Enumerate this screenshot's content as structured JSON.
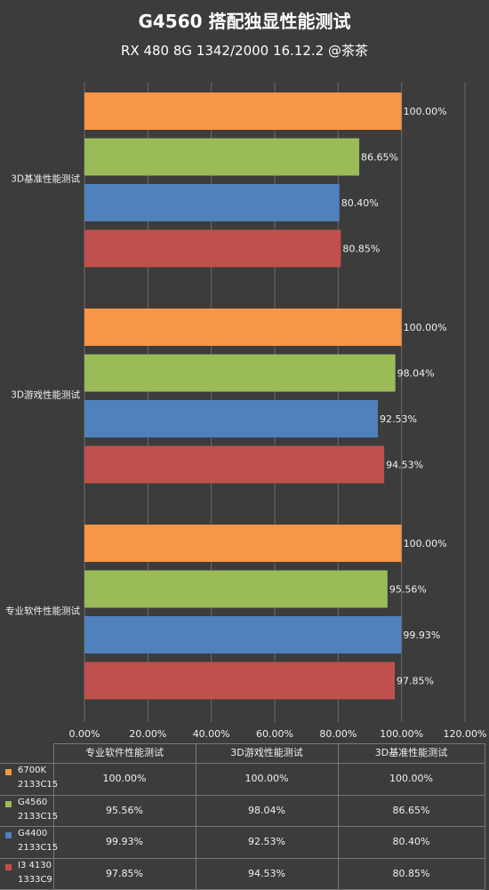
{
  "title": "G4560 搭配独显性能测试",
  "subtitle": "RX 480 8G 1342/2000 16.12.2 @茶茶",
  "chart_data": {
    "type": "bar",
    "orientation": "horizontal",
    "categories": [
      "3D基准性能测试",
      "3D游戏性能测试",
      "专业软件性能测试"
    ],
    "series": [
      {
        "name": "6700K 2133C15",
        "color": "#f79646",
        "values": [
          100.0,
          100.0,
          100.0
        ]
      },
      {
        "name": "G4560 2133C15",
        "color": "#9bbb59",
        "values": [
          86.65,
          98.04,
          95.56
        ]
      },
      {
        "name": "G4400 2133C15",
        "color": "#4f81bd",
        "values": [
          80.4,
          92.53,
          99.93
        ]
      },
      {
        "name": "I3 4130 1333C9",
        "color": "#c0504d",
        "values": [
          80.85,
          94.53,
          97.85
        ]
      }
    ],
    "data_labels": [
      [
        "100.00%",
        "86.65%",
        "80.40%",
        "80.85%"
      ],
      [
        "100.00%",
        "98.04%",
        "92.53%",
        "94.53%"
      ],
      [
        "100.00%",
        "95.56%",
        "99.93%",
        "97.85%"
      ]
    ],
    "xlim": [
      0,
      120
    ],
    "xticks": [
      "0.00%",
      "20.00%",
      "40.00%",
      "60.00%",
      "80.00%",
      "100.00%",
      "120.00%"
    ],
    "grid": true,
    "data_table": {
      "columns": [
        "专业软件性能测试",
        "3D游戏性能测试",
        "3D基准性能测试"
      ],
      "rows": [
        {
          "name1": "6700K",
          "name2": "2133C15",
          "color": "#f79646",
          "values": [
            "100.00%",
            "100.00%",
            "100.00%"
          ]
        },
        {
          "name1": "G4560",
          "name2": "2133C15",
          "color": "#9bbb59",
          "values": [
            "95.56%",
            "98.04%",
            "86.65%"
          ]
        },
        {
          "name1": "G4400",
          "name2": "2133C15",
          "color": "#4f81bd",
          "values": [
            "99.93%",
            "92.53%",
            "80.40%"
          ]
        },
        {
          "name1": "I3 4130",
          "name2": "1333C9",
          "color": "#c0504d",
          "values": [
            "97.85%",
            "94.53%",
            "80.85%"
          ]
        }
      ]
    }
  }
}
